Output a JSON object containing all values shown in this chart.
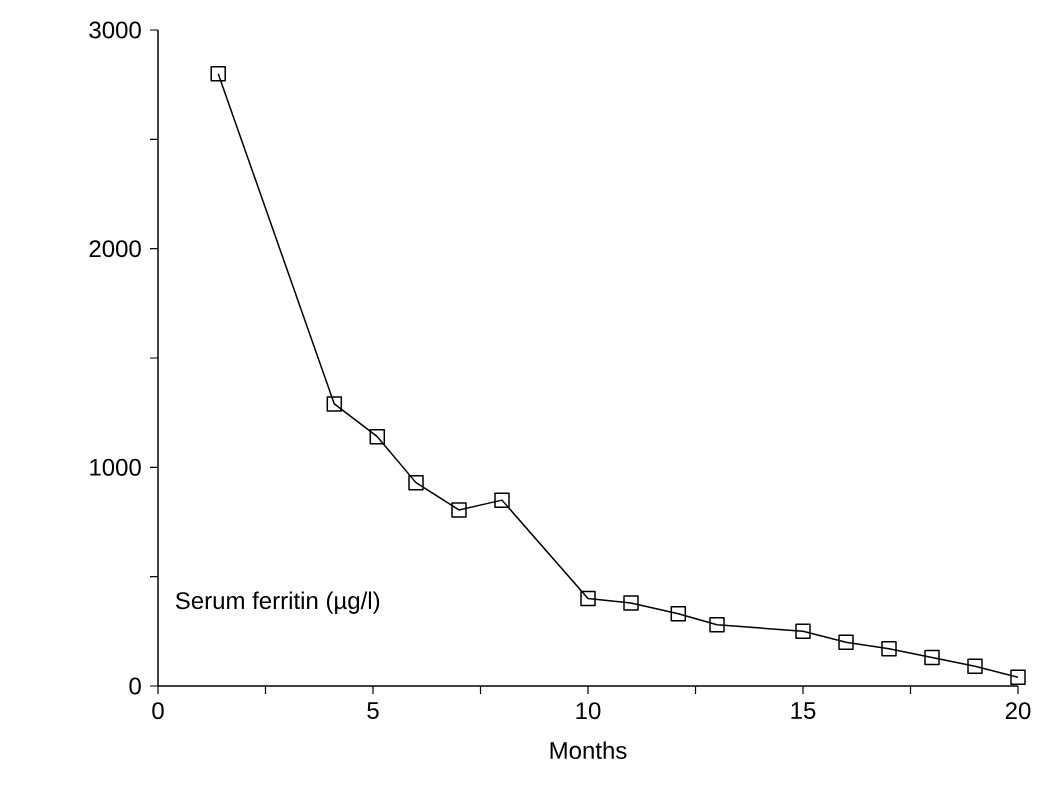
{
  "chart_data": {
    "type": "line",
    "xlabel": "Months",
    "ylabel": "Serum ferritin (µg/l)",
    "x": [
      1.4,
      4.1,
      5.1,
      6,
      7,
      8,
      10,
      11,
      12.1,
      13,
      15,
      16,
      17,
      18,
      19,
      20
    ],
    "series": [
      {
        "color": "#000000",
        "values": [
          2800,
          1290,
          1140,
          930,
          805,
          850,
          400,
          380,
          330,
          280,
          250,
          200,
          170,
          130,
          90,
          40
        ]
      }
    ],
    "xlim": [
      0,
      20
    ],
    "ylim": [
      0,
      3000
    ],
    "xticks": [
      0,
      {
        "value": 2.5,
        "label": null
      },
      5,
      {
        "value": 7.5,
        "label": null
      },
      10,
      {
        "value": 12.5,
        "label": null
      },
      15,
      {
        "value": 17.5,
        "label": null
      },
      20
    ],
    "yticks": [
      0,
      {
        "value": 500,
        "label": null
      },
      1000,
      {
        "value": 1500,
        "label": null
      },
      2000,
      {
        "value": 2500,
        "label": null
      },
      3000
    ],
    "marker": "square",
    "line_style": "solid",
    "grid": false
  }
}
